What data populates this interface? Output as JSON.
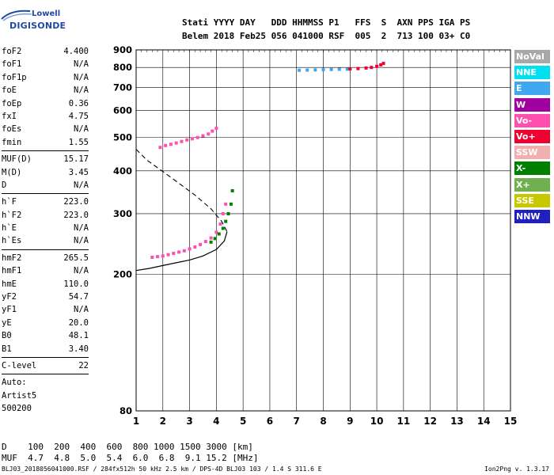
{
  "logo": {
    "line1": "Lowell",
    "line2": "DIGISONDE"
  },
  "header": {
    "line1": "Stati YYYY DAY   DDD HHMMSS P1   FFS  S  AXN PPS IGA PS",
    "line2": "Belem 2018 Feb25 056 041000 RSF  005  2  713 100 03+ C0"
  },
  "params": {
    "group1": [
      {
        "k": "foF2",
        "v": "4.400"
      },
      {
        "k": "foF1",
        "v": "N/A"
      },
      {
        "k": "foF1p",
        "v": "N/A"
      },
      {
        "k": "foE",
        "v": "N/A"
      },
      {
        "k": "foEp",
        "v": "0.36"
      },
      {
        "k": "fxI",
        "v": "4.75"
      },
      {
        "k": "foEs",
        "v": "N/A"
      },
      {
        "k": "fmin",
        "v": "1.55"
      }
    ],
    "group2": [
      {
        "k": "MUF(D)",
        "v": "15.17"
      },
      {
        "k": "M(D)",
        "v": "3.45"
      },
      {
        "k": "D",
        "v": "N/A"
      }
    ],
    "group3": [
      {
        "k": "h`F",
        "v": "223.0"
      },
      {
        "k": "h`F2",
        "v": "223.0"
      },
      {
        "k": "h`E",
        "v": "N/A"
      },
      {
        "k": "h`Es",
        "v": "N/A"
      }
    ],
    "group4": [
      {
        "k": "hmF2",
        "v": "265.5"
      },
      {
        "k": "hmF1",
        "v": "N/A"
      },
      {
        "k": "hmE",
        "v": "110.0"
      },
      {
        "k": "yF2",
        "v": "54.7"
      },
      {
        "k": "yF1",
        "v": "N/A"
      },
      {
        "k": "yE",
        "v": "20.0"
      },
      {
        "k": "B0",
        "v": "48.1"
      },
      {
        "k": "B1",
        "v": "3.40"
      }
    ],
    "group5": [
      {
        "k": "C-level",
        "v": "22"
      }
    ],
    "auto": [
      "Auto:",
      "Artist5",
      "500200"
    ]
  },
  "legend": [
    {
      "label": "NoVal",
      "color": "#a8a8a8"
    },
    {
      "label": "NNE",
      "color": "#00e0f0"
    },
    {
      "label": "E",
      "color": "#40a8f0"
    },
    {
      "label": "W",
      "color": "#a000a0"
    },
    {
      "label": "Vo-",
      "color": "#ff50b0"
    },
    {
      "label": "Vo+",
      "color": "#f00030"
    },
    {
      "label": "SSW",
      "color": "#f0b0b0"
    },
    {
      "label": "X-",
      "color": "#008000"
    },
    {
      "label": "X+",
      "color": "#70b050"
    },
    {
      "label": "SSE",
      "color": "#c8c800"
    },
    {
      "label": "NNW",
      "color": "#2020c0"
    }
  ],
  "bottom_table": {
    "line1": "D    100  200  400  600  800 1000 1500 3000 [km]",
    "line2": "MUF  4.7  4.8  5.0  5.4  6.0  6.8  9.1 15.2 [MHz]"
  },
  "footer": {
    "left": "BLJ03_2018056041000.RSF / 284fx512h 50 kHz 2.5 km / DPS-4D BLJ03 103 / 1.4 S 311.6 E",
    "right": "Ion2Png v. 1.3.17"
  },
  "chart_data": {
    "type": "scatter",
    "title": "",
    "xlabel": "",
    "ylabel": "",
    "xlim": [
      1,
      15
    ],
    "ylim": [
      80,
      900
    ],
    "y_scale": "log",
    "x_ticks": [
      1,
      2,
      3,
      4,
      5,
      6,
      7,
      8,
      9,
      10,
      11,
      12,
      13,
      14,
      15
    ],
    "y_ticks": [
      80,
      200,
      300,
      400,
      500,
      600,
      700,
      800,
      900
    ],
    "grid": true,
    "legend_position": "right",
    "series": [
      {
        "name": "Vo-",
        "color": "#ff50b0",
        "x": [
          1.6,
          1.8,
          2.0,
          2.2,
          2.4,
          2.6,
          2.8,
          3.0,
          3.2,
          3.4,
          3.6,
          3.8,
          4.0,
          4.15,
          4.25,
          4.35
        ],
        "y": [
          224,
          225,
          226,
          228,
          230,
          232,
          234,
          237,
          240,
          244,
          249,
          255,
          265,
          280,
          300,
          320
        ]
      },
      {
        "name": "X-",
        "color": "#008000",
        "x": [
          3.8,
          3.95,
          4.1,
          4.25,
          4.35,
          4.45,
          4.55,
          4.6
        ],
        "y": [
          248,
          254,
          262,
          272,
          285,
          300,
          320,
          350
        ]
      },
      {
        "name": "Vo- echo 2",
        "color": "#ff50b0",
        "x": [
          1.9,
          2.1,
          2.3,
          2.5,
          2.7,
          2.9,
          3.1,
          3.3,
          3.5,
          3.7,
          3.85,
          4.0
        ],
        "y": [
          468,
          474,
          478,
          482,
          487,
          492,
          496,
          500,
          506,
          512,
          522,
          532
        ]
      },
      {
        "name": "E",
        "color": "#40a8f0",
        "x": [
          7.1,
          7.4,
          7.7,
          8.0,
          8.3,
          8.6,
          8.9
        ],
        "y": [
          785,
          786,
          787,
          788,
          789,
          790,
          791
        ]
      },
      {
        "name": "Vo+",
        "color": "#f00030",
        "x": [
          9.0,
          9.3,
          9.6,
          9.8,
          10.0,
          10.15,
          10.25
        ],
        "y": [
          792,
          794,
          797,
          800,
          806,
          814,
          822
        ]
      }
    ],
    "profile": {
      "solid_x": [
        1.0,
        1.5,
        2.0,
        2.5,
        3.0,
        3.5,
        4.0,
        4.3,
        4.4
      ],
      "solid_y": [
        205,
        208,
        212,
        216,
        220,
        226,
        236,
        250,
        266
      ],
      "dashed_x": [
        1.0,
        1.4,
        2.0,
        2.6,
        3.2,
        3.8,
        4.2,
        4.4
      ],
      "dashed_y": [
        462,
        430,
        398,
        368,
        340,
        310,
        285,
        266
      ]
    }
  }
}
